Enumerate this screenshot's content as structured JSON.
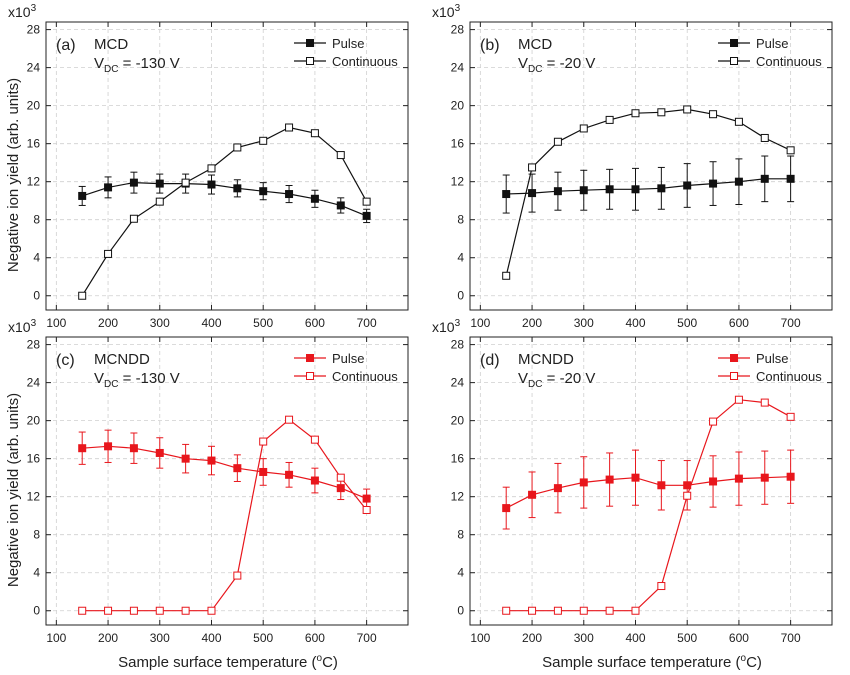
{
  "figure": {
    "ylabel": "Negative ion yield (arb. units)",
    "xlabel": "Sample surface temperature (",
    "xlabel_sup": "o",
    "xlabel_tail": "C)",
    "multiplier_base": "x10",
    "multiplier_exp": "3"
  },
  "chart_data": [
    {
      "type": "line",
      "panel": "(a)",
      "material": "MCD",
      "vdc_prefix": "V",
      "vdc_sub": "DC",
      "vdc_value": "= -130 V",
      "color": "#111111",
      "xlim": [
        80,
        780
      ],
      "ylim": [
        -1.5,
        28.8
      ],
      "xticks": [
        100,
        200,
        300,
        400,
        500,
        600,
        700
      ],
      "yticks": [
        0,
        4,
        8,
        12,
        16,
        20,
        24,
        28
      ],
      "x": [
        150,
        200,
        250,
        300,
        350,
        400,
        450,
        500,
        550,
        600,
        650,
        700
      ],
      "series": [
        {
          "name": "Pulse",
          "marker": "filled",
          "values": [
            10.5,
            11.4,
            11.9,
            11.8,
            11.8,
            11.7,
            11.3,
            11.0,
            10.7,
            10.2,
            9.5,
            8.4
          ],
          "errors": [
            1.0,
            1.1,
            1.1,
            1.0,
            1.0,
            1.0,
            0.9,
            0.9,
            0.9,
            0.9,
            0.8,
            0.7
          ]
        },
        {
          "name": "Continuous",
          "marker": "open",
          "values": [
            0.0,
            4.4,
            8.1,
            9.9,
            11.9,
            13.4,
            15.6,
            16.3,
            17.7,
            17.1,
            14.8,
            9.9
          ],
          "errors": null
        }
      ]
    },
    {
      "type": "line",
      "panel": "(b)",
      "material": "MCD",
      "vdc_prefix": "V",
      "vdc_sub": "DC",
      "vdc_value": "= -20 V",
      "color": "#111111",
      "xlim": [
        80,
        780
      ],
      "ylim": [
        -1.5,
        28.8
      ],
      "xticks": [
        100,
        200,
        300,
        400,
        500,
        600,
        700
      ],
      "yticks": [
        0,
        4,
        8,
        12,
        16,
        20,
        24,
        28
      ],
      "x": [
        150,
        200,
        250,
        300,
        350,
        400,
        450,
        500,
        550,
        600,
        650,
        700
      ],
      "series": [
        {
          "name": "Pulse",
          "marker": "filled",
          "values": [
            10.7,
            10.8,
            11.0,
            11.1,
            11.2,
            11.2,
            11.3,
            11.6,
            11.8,
            12.0,
            12.3,
            12.3
          ],
          "errors": [
            2.0,
            2.0,
            2.0,
            2.1,
            2.1,
            2.2,
            2.2,
            2.3,
            2.3,
            2.4,
            2.4,
            2.4
          ]
        },
        {
          "name": "Continuous",
          "marker": "open",
          "values": [
            2.1,
            13.5,
            16.2,
            17.6,
            18.5,
            19.2,
            19.3,
            19.6,
            19.1,
            18.3,
            16.6,
            15.3
          ],
          "errors": null
        }
      ]
    },
    {
      "type": "line",
      "panel": "(c)",
      "material": "MCNDD",
      "vdc_prefix": "V",
      "vdc_sub": "DC",
      "vdc_value": "= -130 V",
      "color": "#e8161c",
      "xlim": [
        80,
        780
      ],
      "ylim": [
        -1.5,
        28.8
      ],
      "xticks": [
        100,
        200,
        300,
        400,
        500,
        600,
        700
      ],
      "yticks": [
        0,
        4,
        8,
        12,
        16,
        20,
        24,
        28
      ],
      "x": [
        150,
        200,
        250,
        300,
        350,
        400,
        450,
        500,
        550,
        600,
        650,
        700
      ],
      "series": [
        {
          "name": "Pulse",
          "marker": "filled",
          "values": [
            17.1,
            17.3,
            17.1,
            16.6,
            16.0,
            15.8,
            15.0,
            14.6,
            14.3,
            13.7,
            12.9,
            11.8
          ],
          "errors": [
            1.7,
            1.7,
            1.6,
            1.6,
            1.5,
            1.5,
            1.4,
            1.4,
            1.3,
            1.3,
            1.2,
            1.0
          ]
        },
        {
          "name": "Continuous",
          "marker": "open",
          "values": [
            0.0,
            0.0,
            0.0,
            0.0,
            0.0,
            0.0,
            3.7,
            17.8,
            20.1,
            18.0,
            14.0,
            10.6
          ],
          "errors": null
        }
      ]
    },
    {
      "type": "line",
      "panel": "(d)",
      "material": "MCNDD",
      "vdc_prefix": "V",
      "vdc_sub": "DC",
      "vdc_value": "= -20 V",
      "color": "#e8161c",
      "xlim": [
        80,
        780
      ],
      "ylim": [
        -1.5,
        28.8
      ],
      "xticks": [
        100,
        200,
        300,
        400,
        500,
        600,
        700
      ],
      "yticks": [
        0,
        4,
        8,
        12,
        16,
        20,
        24,
        28
      ],
      "x": [
        150,
        200,
        250,
        300,
        350,
        400,
        450,
        500,
        550,
        600,
        650,
        700
      ],
      "series": [
        {
          "name": "Pulse",
          "marker": "filled",
          "values": [
            10.8,
            12.2,
            12.9,
            13.5,
            13.8,
            14.0,
            13.2,
            13.2,
            13.6,
            13.9,
            14.0,
            14.1
          ],
          "errors": [
            2.2,
            2.4,
            2.6,
            2.7,
            2.8,
            2.9,
            2.6,
            2.6,
            2.7,
            2.8,
            2.8,
            2.8
          ]
        },
        {
          "name": "Continuous",
          "marker": "open",
          "values": [
            0.0,
            0.0,
            0.0,
            0.0,
            0.0,
            0.0,
            2.6,
            12.1,
            19.9,
            22.2,
            21.9,
            20.4
          ],
          "errors": null
        }
      ]
    }
  ]
}
